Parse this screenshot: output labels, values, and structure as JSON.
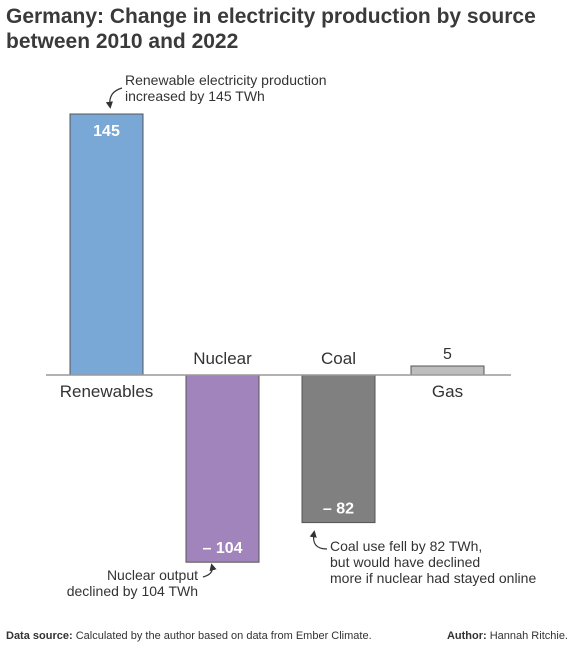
{
  "title": {
    "line1": "Germany: Change in electricity production by source",
    "line2": "between 2010 and 2022"
  },
  "chart_data": {
    "type": "bar",
    "categories": [
      "Renewables",
      "Nuclear",
      "Coal",
      "Gas"
    ],
    "values": [
      145,
      -104,
      -82,
      5
    ],
    "value_labels": [
      "145",
      "– 104",
      "– 82",
      "5"
    ],
    "colors": [
      "#79a8d6",
      "#a184bb",
      "#808080",
      "#bdbdbd"
    ],
    "ylim": [
      -104,
      145
    ],
    "xlabel": "",
    "ylabel": "",
    "grid": false,
    "annotations": [
      {
        "target": "Renewables",
        "lines": [
          "Renewable electricity production",
          "increased by 145 TWh"
        ]
      },
      {
        "target": "Nuclear",
        "lines": [
          "Nuclear output",
          "declined by 104 TWh"
        ]
      },
      {
        "target": "Coal",
        "lines": [
          "Coal use fell by 82 TWh,",
          "but would have declined",
          "more if nuclear had stayed online"
        ]
      }
    ]
  },
  "footer": {
    "source_label": "Data source:",
    "source_text": "Calculated by the author based on data from Ember Climate.",
    "author_label": "Author:",
    "author_text": "Hannah Ritchie."
  }
}
